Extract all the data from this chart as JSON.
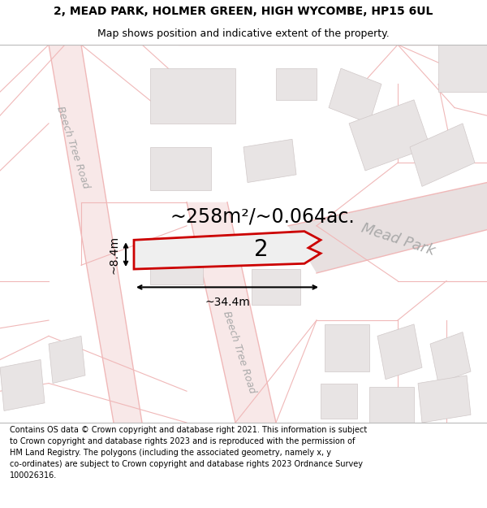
{
  "title_line1": "2, MEAD PARK, HOLMER GREEN, HIGH WYCOMBE, HP15 6UL",
  "title_line2": "Map shows position and indicative extent of the property.",
  "area_text": "~258m²/~0.064ac.",
  "dim_width": "~34.4m",
  "dim_height": "~8.4m",
  "plot_label": "2",
  "road_label1": "Beech Tree Road",
  "road_label2": "Beech Tree Road",
  "road_label3": "Mead Park",
  "footer_text": "Contains OS data © Crown copyright and database right 2021. This information is subject\nto Crown copyright and database rights 2023 and is reproduced with the permission of\nHM Land Registry. The polygons (including the associated geometry, namely x, y\nco-ordinates) are subject to Crown copyright and database rights 2023 Ordnance Survey\n100026316.",
  "bg_color": "#ffffff",
  "map_bg": "#ffffff",
  "plot_fill": "#efefef",
  "plot_edge": "#cc0000",
  "road_color": "#f0b8b8",
  "road_fill": "#f8e8e8",
  "building_fill": "#e8e4e4",
  "building_edge": "#d0c8c8",
  "title_fontsize": 10,
  "subtitle_fontsize": 9,
  "area_fontsize": 17,
  "label_fontsize": 20,
  "dim_fontsize": 10,
  "road_label_fontsize": 9,
  "mead_park_fontsize": 13,
  "footer_fontsize": 7
}
